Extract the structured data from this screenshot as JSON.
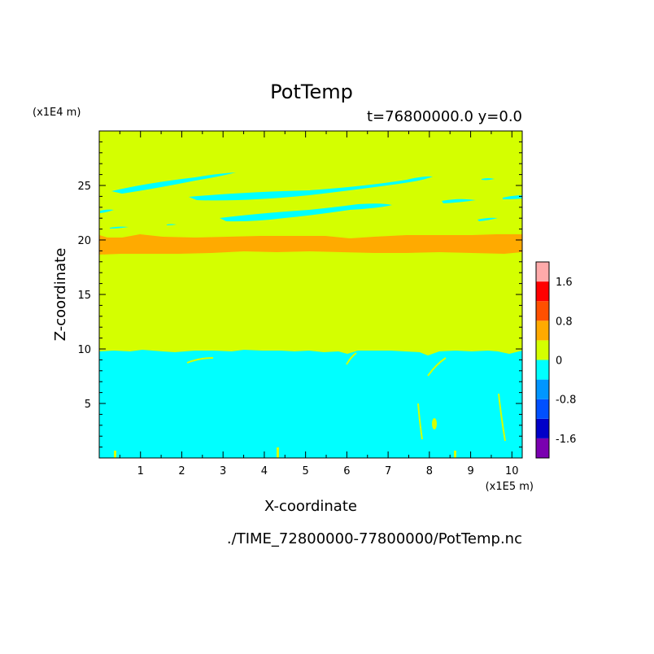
{
  "chart_data": {
    "type": "heatmap",
    "title": "PotTemp",
    "subtitle": "t=76800000.0 y=0.0",
    "xlabel": "X-coordinate",
    "ylabel": "Z-coordinate",
    "x_unit": "(x1E5 m)",
    "z_unit": "(x1E4 m)",
    "xlim": [
      0,
      10.25
    ],
    "ylim": [
      0,
      30
    ],
    "xticks": [
      "1",
      "2",
      "3",
      "4",
      "5",
      "6",
      "7",
      "8",
      "9",
      "10"
    ],
    "yticks": [
      "5",
      "10",
      "15",
      "20",
      "25"
    ],
    "footer": "./TIME_72800000-77800000/PotTemp.nc",
    "colorbar": {
      "levels": [
        -2.0,
        -1.6,
        -1.2,
        -0.8,
        -0.4,
        0,
        0.4,
        0.8,
        1.2,
        1.6,
        2.0
      ],
      "colors": [
        "#7a00b0",
        "#0000c8",
        "#0050ff",
        "#0096ff",
        "#00ffff",
        "#d4ff00",
        "#ffaa00",
        "#ff5000",
        "#ff0000",
        "#ffaaaa"
      ],
      "labels": [
        "1.6",
        "0.8",
        "0",
        "-0.8",
        "-1.6"
      ]
    },
    "regions": {
      "background_value": "0 to 0.4",
      "lower_layer": {
        "value": "-0.4 to 0",
        "z_top": 9.8
      },
      "middle_band": {
        "value": "0.4 to 0.8",
        "z_range": [
          18.8,
          20.4
        ]
      },
      "upper_patches_value": "-0.4 to 0"
    }
  }
}
